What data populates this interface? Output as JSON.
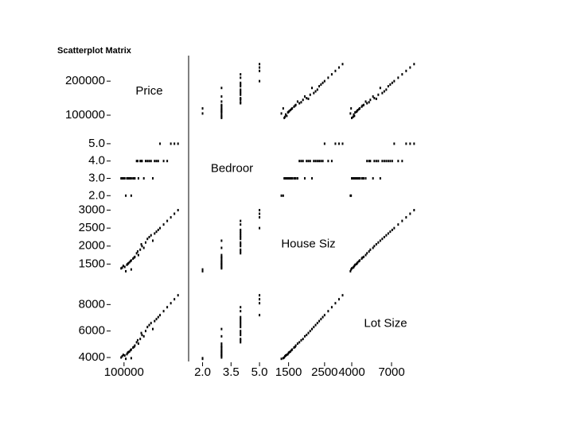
{
  "chart_data": {
    "type": "scatter-matrix",
    "title": "Scatterplot Matrix",
    "variables": [
      {
        "name": "Price",
        "lim": [
          65000,
          275000
        ],
        "yticks": [
          100000,
          200000
        ],
        "xticks": [
          100000
        ]
      },
      {
        "name": "Bedroor",
        "lim": [
          1.6,
          5.5
        ],
        "yticks": [
          {
            "value": 2,
            "label": "2.0"
          },
          {
            "value": 3,
            "label": "3.0"
          },
          {
            "value": 4,
            "label": "4.0"
          },
          {
            "value": 5,
            "label": "5.0"
          }
        ],
        "xticks": [
          {
            "value": 2,
            "label": "2.0"
          },
          3.5,
          {
            "value": 5,
            "label": "5.0"
          }
        ]
      },
      {
        "name": "House Siz",
        "lim": [
          1000,
          3100
        ],
        "yticks": [
          1500,
          2000,
          2500,
          3000
        ],
        "xticks": [
          1500,
          2500
        ]
      },
      {
        "name": "Lot Size",
        "lim": [
          3700,
          9400
        ],
        "yticks": [
          4000,
          6000,
          8000
        ],
        "xticks": [
          4000,
          7000
        ]
      }
    ],
    "color": "#000000",
    "observations": [
      [
        95000,
        3,
        1400,
        4100
      ],
      [
        110000,
        3,
        1500,
        4350
      ],
      [
        120000,
        3,
        1600,
        4600
      ],
      [
        105000,
        2,
        1300,
        3900
      ],
      [
        130000,
        3,
        1700,
        4900
      ],
      [
        145000,
        4,
        1900,
        5400
      ],
      [
        160000,
        4,
        2100,
        6000
      ],
      [
        175000,
        4,
        2300,
        6600
      ],
      [
        190000,
        4,
        2400,
        6900
      ],
      [
        210000,
        4,
        2600,
        7500
      ],
      [
        230000,
        5,
        2800,
        8100
      ],
      [
        250000,
        5,
        3000,
        8700
      ],
      [
        98000,
        3,
        1450,
        4200
      ],
      [
        115000,
        3,
        1550,
        4450
      ],
      [
        125000,
        3,
        1650,
        4750
      ],
      [
        135000,
        4,
        1800,
        5150
      ],
      [
        150000,
        4,
        2000,
        5700
      ],
      [
        165000,
        4,
        2200,
        6300
      ],
      [
        185000,
        4,
        2350,
        6750
      ],
      [
        200000,
        5,
        2500,
        7200
      ],
      [
        140000,
        3,
        1750,
        5050
      ],
      [
        120000,
        2,
        1350,
        3950
      ],
      [
        108000,
        3,
        1480,
        4250
      ],
      [
        102000,
        3,
        1420,
        4150
      ],
      [
        155000,
        3,
        1950,
        5600
      ],
      [
        170000,
        4,
        2250,
        6450
      ],
      [
        195000,
        4,
        2450,
        7050
      ],
      [
        220000,
        4,
        2700,
        7800
      ],
      [
        240000,
        5,
        2900,
        8400
      ],
      [
        112000,
        3,
        1520,
        4400
      ],
      [
        128000,
        3,
        1680,
        4800
      ],
      [
        138000,
        4,
        1850,
        5300
      ],
      [
        118000,
        3,
        1580,
        4550
      ],
      [
        148000,
        4,
        2050,
        5850
      ],
      [
        180000,
        3,
        2150,
        6150
      ],
      [
        92000,
        3,
        1380,
        4000
      ]
    ]
  }
}
